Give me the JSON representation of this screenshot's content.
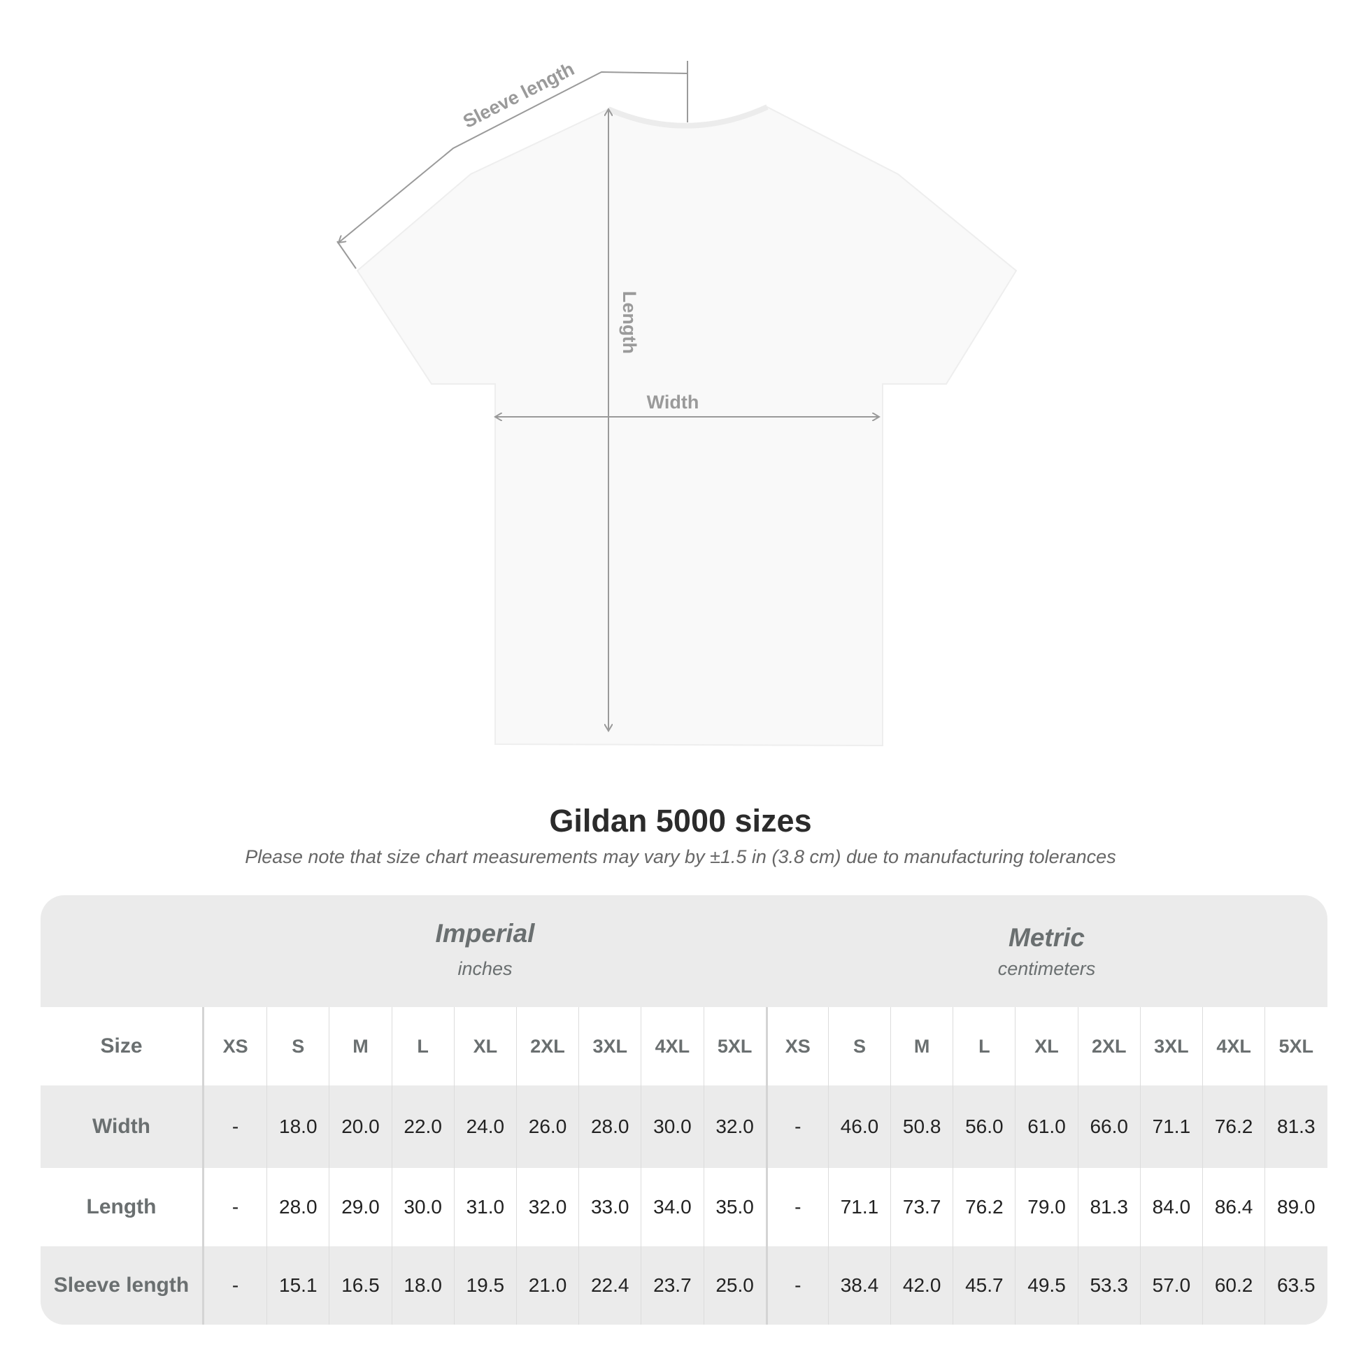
{
  "diagram": {
    "labels": {
      "sleeve": "Sleeve length",
      "length": "Length",
      "width": "Width"
    },
    "colors": {
      "shirt": "#f9f9f9",
      "measure_line": "#9a9a9a",
      "label": "#9a9a9a"
    }
  },
  "title": "Gildan 5000 sizes",
  "note": "Please note that size chart measurements may vary by ±1.5 in (3.8 cm) due to manufacturing tolerances",
  "table": {
    "imperial": {
      "label": "Imperial",
      "unit": "inches"
    },
    "metric": {
      "label": "Metric",
      "unit": "centimeters"
    },
    "size_label": "Size",
    "sizes": [
      "XS",
      "S",
      "M",
      "L",
      "XL",
      "2XL",
      "3XL",
      "4XL",
      "5XL",
      "XS",
      "S",
      "M",
      "L",
      "XL",
      "2XL",
      "3XL",
      "4XL",
      "5XL"
    ],
    "rows": [
      {
        "label": "Width",
        "values": [
          "-",
          "18.0",
          "20.0",
          "22.0",
          "24.0",
          "26.0",
          "28.0",
          "30.0",
          "32.0",
          "-",
          "46.0",
          "50.8",
          "56.0",
          "61.0",
          "66.0",
          "71.1",
          "76.2",
          "81.3"
        ]
      },
      {
        "label": "Length",
        "values": [
          "-",
          "28.0",
          "29.0",
          "30.0",
          "31.0",
          "32.0",
          "33.0",
          "34.0",
          "35.0",
          "-",
          "71.1",
          "73.7",
          "76.2",
          "79.0",
          "81.3",
          "84.0",
          "86.4",
          "89.0"
        ]
      },
      {
        "label": "Sleeve length",
        "values": [
          "-",
          "15.1",
          "16.5",
          "18.0",
          "19.5",
          "21.0",
          "22.4",
          "23.7",
          "25.0",
          "-",
          "38.4",
          "42.0",
          "45.7",
          "49.5",
          "53.3",
          "57.0",
          "60.2",
          "63.5"
        ]
      }
    ]
  }
}
